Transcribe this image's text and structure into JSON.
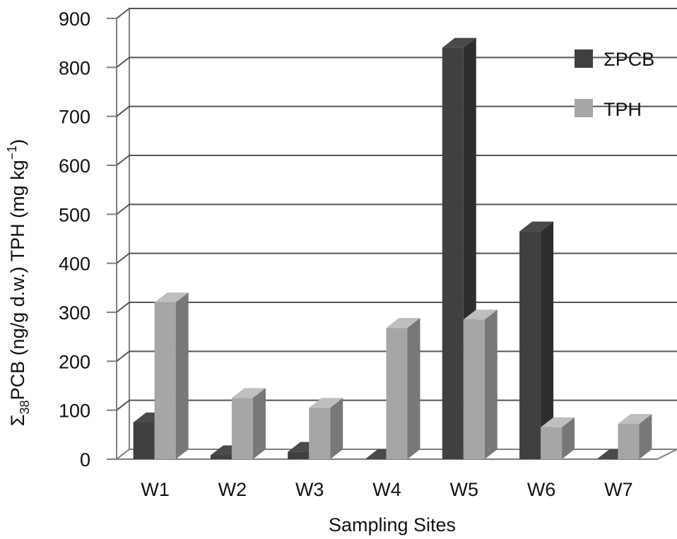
{
  "chart_data": {
    "type": "bar",
    "style": "3d-clustered-column",
    "categories": [
      "W1",
      "W2",
      "W3",
      "W4",
      "W5",
      "W6",
      "W7"
    ],
    "series": [
      {
        "name": "ΣPCB",
        "values": [
          75,
          8,
          15,
          0,
          840,
          465,
          0
        ],
        "color": "#404040"
      },
      {
        "name": "TPH",
        "values": [
          320,
          125,
          105,
          268,
          285,
          65,
          72
        ],
        "color": "#a6a6a6"
      }
    ],
    "xlabel": "Sampling Sites",
    "ylabel_parts": {
      "sigma": "Σ",
      "subscript": "38",
      "pcb": "PCB (ng/g d.w.) TPH (mg kg",
      "superscript": "−1",
      "close": ")"
    },
    "yticks": [
      "0",
      "100",
      "200",
      "300",
      "400",
      "500",
      "600",
      "700",
      "800",
      "900"
    ],
    "ylim": [
      0,
      900
    ],
    "grid": true,
    "legend_position": "top-right"
  }
}
